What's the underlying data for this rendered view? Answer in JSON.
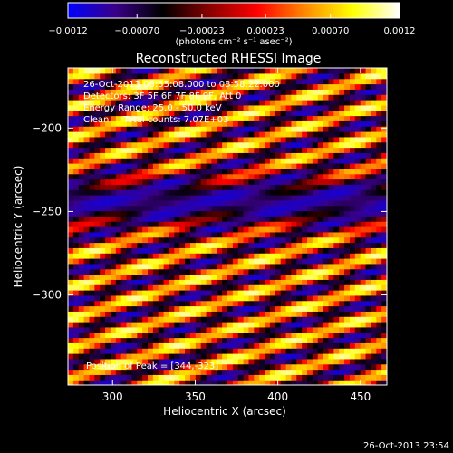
{
  "chart_data": {
    "type": "heatmap",
    "title": "Reconstructed RHESSI Image",
    "xlabel": "Heliocentric X (arcsec)",
    "ylabel": "Heliocentric Y (arcsec)",
    "xlim": [
      273,
      466
    ],
    "ylim": [
      -354,
      -164
    ],
    "x_ticks": [
      300,
      350,
      400,
      450
    ],
    "y_ticks": [
      -200,
      -250,
      -300
    ],
    "x_tick_labels": [
      "300",
      "350",
      "400",
      "450"
    ],
    "y_tick_labels": [
      "−200",
      "−250",
      "−300"
    ],
    "colorbar": {
      "range": [
        -0.0012,
        0.0012
      ],
      "ticks": [
        -0.0012,
        -0.0007,
        -0.00023,
        0.00023,
        0.0007,
        0.0012
      ],
      "tick_labels": [
        "−0.0012",
        "−0.00070",
        "−0.00023",
        "0.00023",
        "0.00070",
        "0.0012"
      ],
      "unit_label": "(photons cm⁻² s⁻¹ asec⁻²)",
      "colors": [
        "#0000ff",
        "#3a0088",
        "#000000",
        "#8a0000",
        "#ff0000",
        "#ff8800",
        "#ffff00",
        "#ffffff"
      ]
    },
    "annotations": {
      "time_range": "26-Oct-2013 08:55:08.000 to 08:58:22.000",
      "detectors": "Detectors: 3F 5F 6F 7F 8F 9F, Att 0",
      "energy": "Energy Range: 25.0 - 50.0 keV",
      "method": "Clean     Total counts: 7.07E+03",
      "peak": "Position of Peak = [344,-323]"
    },
    "pattern": {
      "stripe_slope_y_per_x": 0.3,
      "stripe_period_arcsec": 18,
      "negative_band_center_y": -244,
      "peak_value": 0.0012,
      "min_value": -0.0012
    }
  },
  "footer": {
    "timestamp": "26-Oct-2013 23:54"
  }
}
